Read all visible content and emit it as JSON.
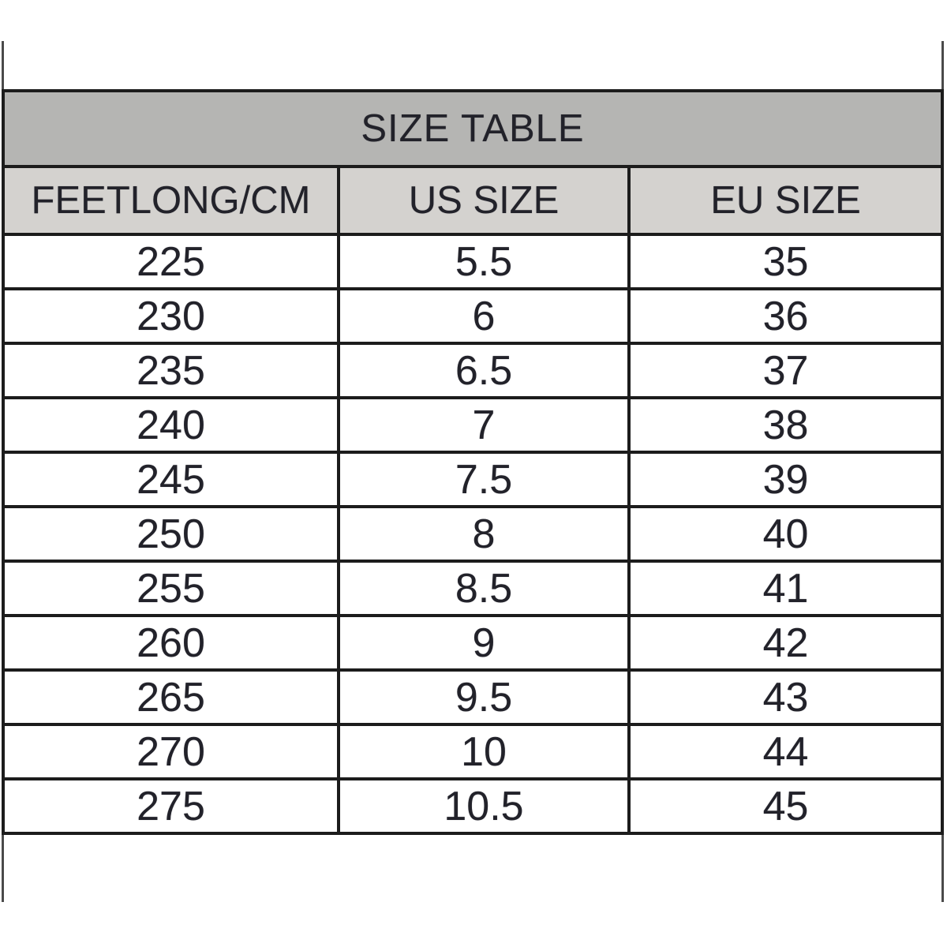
{
  "page": {
    "background": "#ffffff"
  },
  "colors": {
    "grid_line": "#1c1c1c",
    "title_row_bg": "#b5b5b3",
    "header_row_bg": "#d4d2cf",
    "text": "#22222a",
    "partial_gridline": "#4a4a4a"
  },
  "table": {
    "title": "SIZE TABLE",
    "headers": [
      "FEETLONG/CM",
      "US SIZE",
      "EU SIZE"
    ],
    "rows": [
      [
        "225",
        "5.5",
        "35"
      ],
      [
        "230",
        "6",
        "36"
      ],
      [
        "235",
        "6.5",
        "37"
      ],
      [
        "240",
        "7",
        "38"
      ],
      [
        "245",
        "7.5",
        "39"
      ],
      [
        "250",
        "8",
        "40"
      ],
      [
        "255",
        "8.5",
        "41"
      ],
      [
        "260",
        "9",
        "42"
      ],
      [
        "265",
        "9.5",
        "43"
      ],
      [
        "270",
        "10",
        "44"
      ],
      [
        "275",
        "10.5",
        "45"
      ]
    ]
  },
  "chart_data": {
    "type": "table",
    "title": "SIZE TABLE",
    "columns": [
      "FEETLONG/CM",
      "US SIZE",
      "EU SIZE"
    ],
    "rows": [
      [
        225,
        5.5,
        35
      ],
      [
        230,
        6,
        36
      ],
      [
        235,
        6.5,
        37
      ],
      [
        240,
        7,
        38
      ],
      [
        245,
        7.5,
        39
      ],
      [
        250,
        8,
        40
      ],
      [
        255,
        8.5,
        41
      ],
      [
        260,
        9,
        42
      ],
      [
        265,
        9.5,
        43
      ],
      [
        270,
        10,
        44
      ],
      [
        275,
        10.5,
        45
      ]
    ],
    "layout": {
      "title_band": "full-width gray band at top",
      "header_band": "light gray",
      "gridlines": "thick black horizontal and vertical rules",
      "partial_empty_rows": "spreadsheet gridlines visible above and below table"
    }
  }
}
